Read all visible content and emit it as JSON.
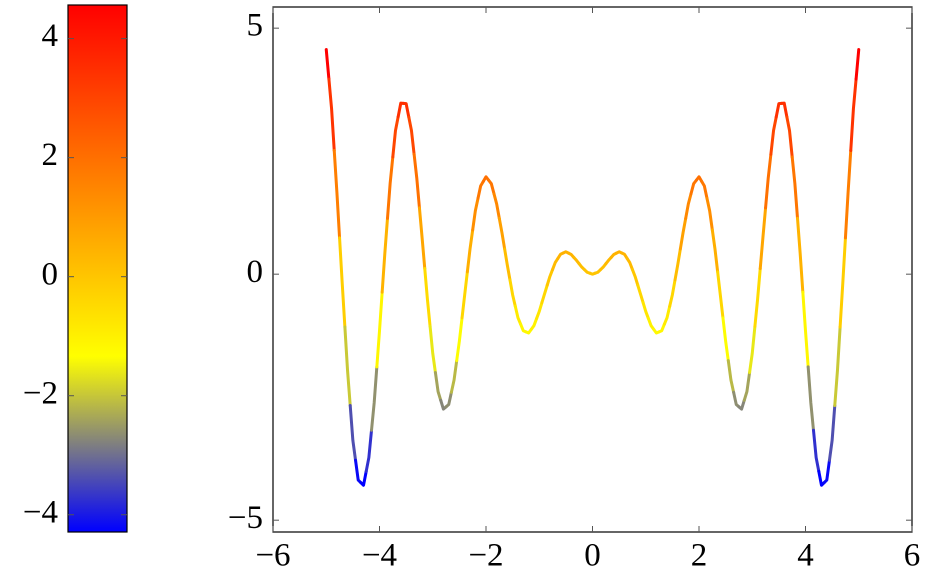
{
  "chart_data": {
    "type": "line",
    "x": [
      -5,
      -4.9,
      -4.8,
      -4.7,
      -4.6,
      -4.5,
      -4.4,
      -4.3,
      -4.2,
      -4.1,
      -4,
      -3.9,
      -3.8,
      -3.7,
      -3.6,
      -3.5,
      -3.4,
      -3.3,
      -3.2,
      -3.1,
      -3,
      -2.9,
      -2.8,
      -2.7,
      -2.6,
      -2.5,
      -2.4,
      -2.3,
      -2.2,
      -2.1,
      -2,
      -1.9,
      -1.8,
      -1.7,
      -1.6,
      -1.5,
      -1.4,
      -1.3,
      -1.2,
      -1.1,
      -1,
      -0.9,
      -0.8,
      -0.7,
      -0.6,
      -0.5,
      -0.4,
      -0.3,
      -0.2,
      -0.1,
      0,
      0.1,
      0.2,
      0.3,
      0.4,
      0.5,
      0.6,
      0.7,
      0.8,
      0.9,
      1,
      1.1,
      1.2,
      1.3,
      1.4,
      1.5,
      1.6,
      1.7,
      1.8,
      1.9,
      2,
      2.1,
      2.2,
      2.3,
      2.4,
      2.5,
      2.6,
      2.7,
      2.8,
      2.9,
      3,
      3.1,
      3.2,
      3.3,
      3.4,
      3.5,
      3.6,
      3.7,
      3.8,
      3.9,
      4,
      4.1,
      4.2,
      4.3,
      4.4,
      4.5,
      4.6,
      4.7,
      4.8,
      4.9,
      5
    ],
    "values": [
      4.565,
      3.364,
      1.664,
      -0.188,
      -1.96,
      -3.38,
      -4.184,
      -4.29,
      -3.728,
      -2.616,
      -1.152,
      0.42,
      1.848,
      2.917,
      3.477,
      3.467,
      2.92,
      1.954,
      0.741,
      -0.513,
      -1.61,
      -2.386,
      -2.742,
      -2.649,
      -2.152,
      -1.36,
      -0.418,
      0.513,
      1.287,
      1.795,
      1.979,
      1.839,
      1.429,
      0.84,
      0.186,
      -0.419,
      -0.884,
      -1.149,
      -1.195,
      -1.047,
      -0.757,
      -0.398,
      -0.047,
      0.235,
      0.405,
      0.455,
      0.4,
      0.28,
      0.143,
      0.039,
      0,
      0.039,
      0.143,
      0.28,
      0.4,
      0.455,
      0.405,
      0.235,
      -0.047,
      -0.398,
      -0.757,
      -1.047,
      -1.195,
      -1.149,
      -0.884,
      -0.419,
      0.186,
      0.84,
      1.429,
      1.839,
      1.979,
      1.795,
      1.287,
      0.513,
      -0.418,
      -1.36,
      -2.152,
      -2.649,
      -2.742,
      -2.386,
      -1.61,
      -0.513,
      0.741,
      1.954,
      2.92,
      3.467,
      3.477,
      2.917,
      1.848,
      0.42,
      -1.152,
      -2.616,
      -3.728,
      -4.29,
      -4.184,
      -3.38,
      -1.96,
      -0.188,
      1.664,
      3.364,
      4.565
    ],
    "colormap": [
      "#0000ff",
      "#ffff00",
      "#ff8000",
      "#ff0000"
    ],
    "colorlim": [
      -4.29,
      4.565
    ],
    "colorticks": [
      {
        "value": -4,
        "label": "−4"
      },
      {
        "value": -2,
        "label": "−2"
      },
      0,
      2,
      4
    ],
    "xlim": [
      -6,
      6
    ],
    "xticks": [
      {
        "value": -6,
        "label": "−6"
      },
      {
        "value": -4,
        "label": "−4"
      },
      {
        "value": -2,
        "label": "−2"
      },
      0,
      2,
      4,
      6
    ],
    "ylim": [
      -5.24,
      5.43
    ],
    "yticks": [
      {
        "value": -5,
        "label": "−5"
      },
      0,
      5
    ]
  }
}
